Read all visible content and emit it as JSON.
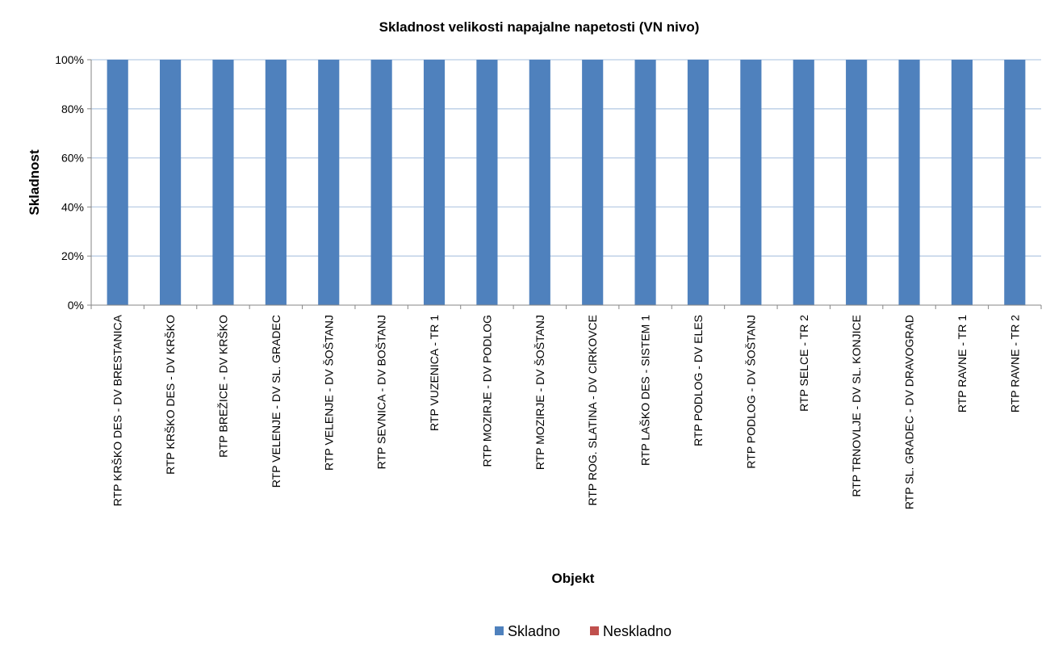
{
  "chart_data": {
    "type": "bar",
    "stacked": true,
    "title": "Skladnost velikosti napajalne napetosti (VN nivo)",
    "xlabel": "Objekt",
    "ylabel": "Skladnost",
    "ylim": [
      0,
      100
    ],
    "y_ticks": [
      "0%",
      "20%",
      "40%",
      "60%",
      "80%",
      "100%"
    ],
    "grid": true,
    "legend_position": "bottom",
    "categories": [
      "RTP KRŠKO DES - DV BRESTANICA",
      "RTP KRŠKO DES - DV KRŠKO",
      "RTP BREŽICE - DV KRŠKO",
      "RTP VELENJE - DV SL. GRADEC",
      "RTP VELENJE - DV ŠOŠTANJ",
      "RTP SEVNICA - DV BOŠTANJ",
      "RTP VUZENICA - TR 1",
      "RTP MOZIRJE - DV PODLOG",
      "RTP MOZIRJE - DV ŠOŠTANJ",
      "RTP ROG. SLATINA - DV CIRKOVCE",
      "RTP LAŠKO DES - SISTEM 1",
      "RTP PODLOG - DV ELES",
      "RTP PODLOG - DV ŠOŠTANJ",
      "RTP SELCE - TR 2",
      "RTP TRNOVLJE - DV SL. KONJICE",
      "RTP SL. GRADEC - DV DRAVOGRAD",
      "RTP RAVNE - TR 1",
      "RTP RAVNE - TR 2"
    ],
    "series": [
      {
        "name": "Skladno",
        "color": "#4F81BD",
        "values": [
          100,
          100,
          100,
          100,
          100,
          100,
          100,
          100,
          100,
          100,
          100,
          100,
          100,
          100,
          100,
          100,
          100,
          100
        ]
      },
      {
        "name": "Neskladno",
        "color": "#C0504D",
        "values": [
          0,
          0,
          0,
          0,
          0,
          0,
          0,
          0,
          0,
          0,
          0,
          0,
          0,
          0,
          0,
          0,
          0,
          0
        ]
      }
    ]
  }
}
